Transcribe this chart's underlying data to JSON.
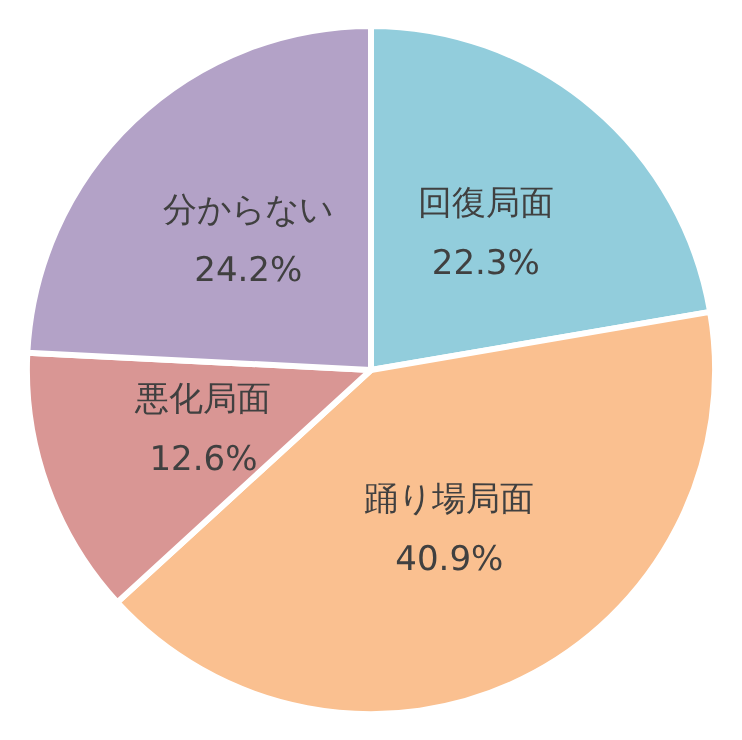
{
  "chart_data": {
    "type": "pie",
    "categories": [
      "回復局面",
      "踊り場局面",
      "悪化局面",
      "分からない"
    ],
    "values": [
      22.3,
      40.9,
      12.6,
      24.2
    ],
    "colors": [
      "#92cddc",
      "#fac090",
      "#d99694",
      "#b3a2c7"
    ],
    "value_labels": [
      "22.3%",
      "40.9%",
      "12.6%",
      "24.2%"
    ],
    "legend": false
  }
}
